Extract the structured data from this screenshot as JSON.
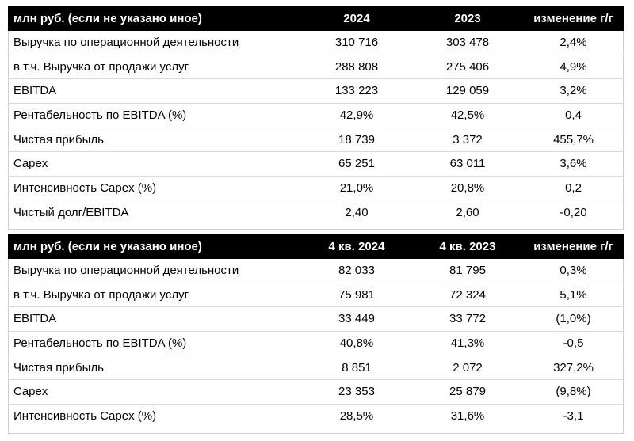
{
  "table1": {
    "header": [
      "млн руб. (если не указано иное)",
      "2024",
      "2023",
      "изменение г/г"
    ],
    "rows": [
      [
        "Выручка по операционной деятельности",
        "310 716",
        "303 478",
        "2,4%"
      ],
      [
        "в т.ч. Выручка от продажи услуг",
        "288 808",
        "275 406",
        "4,9%"
      ],
      [
        "EBITDA",
        "133 223",
        "129 059",
        "3,2%"
      ],
      [
        "Рентабельность по EBITDA (%)",
        "42,9%",
        "42,5%",
        "0,4"
      ],
      [
        "Чистая прибыль",
        "18 739",
        "3 372",
        "455,7%"
      ],
      [
        "Capex",
        "65 251",
        "63 011",
        "3,6%"
      ],
      [
        "Интенсивность Capex (%)",
        "21,0%",
        "20,8%",
        "0,2"
      ],
      [
        "Чистый долг/EBITDA",
        "2,40",
        "2,60",
        "-0,20"
      ]
    ]
  },
  "table2": {
    "header": [
      "млн руб. (если не указано иное)",
      "4 кв. 2024",
      "4 кв. 2023",
      "изменение г/г"
    ],
    "rows": [
      [
        "Выручка по операционной деятельности",
        "82 033",
        "81 795",
        "0,3%"
      ],
      [
        "в т.ч. Выручка от продажи услуг",
        "75 981",
        "72 324",
        "5,1%"
      ],
      [
        "EBITDA",
        "33 449",
        "33 772",
        "(1,0%)"
      ],
      [
        "Рентабельность по EBITDA (%)",
        "40,8%",
        "41,3%",
        "-0,5"
      ],
      [
        "Чистая прибыль",
        "8 851",
        "2 072",
        "327,2%"
      ],
      [
        "Capex",
        "23 353",
        "25 879",
        "(9,8%)"
      ],
      [
        "Интенсивность Capex (%)",
        "28,5%",
        "31,6%",
        "-3,1"
      ]
    ]
  }
}
